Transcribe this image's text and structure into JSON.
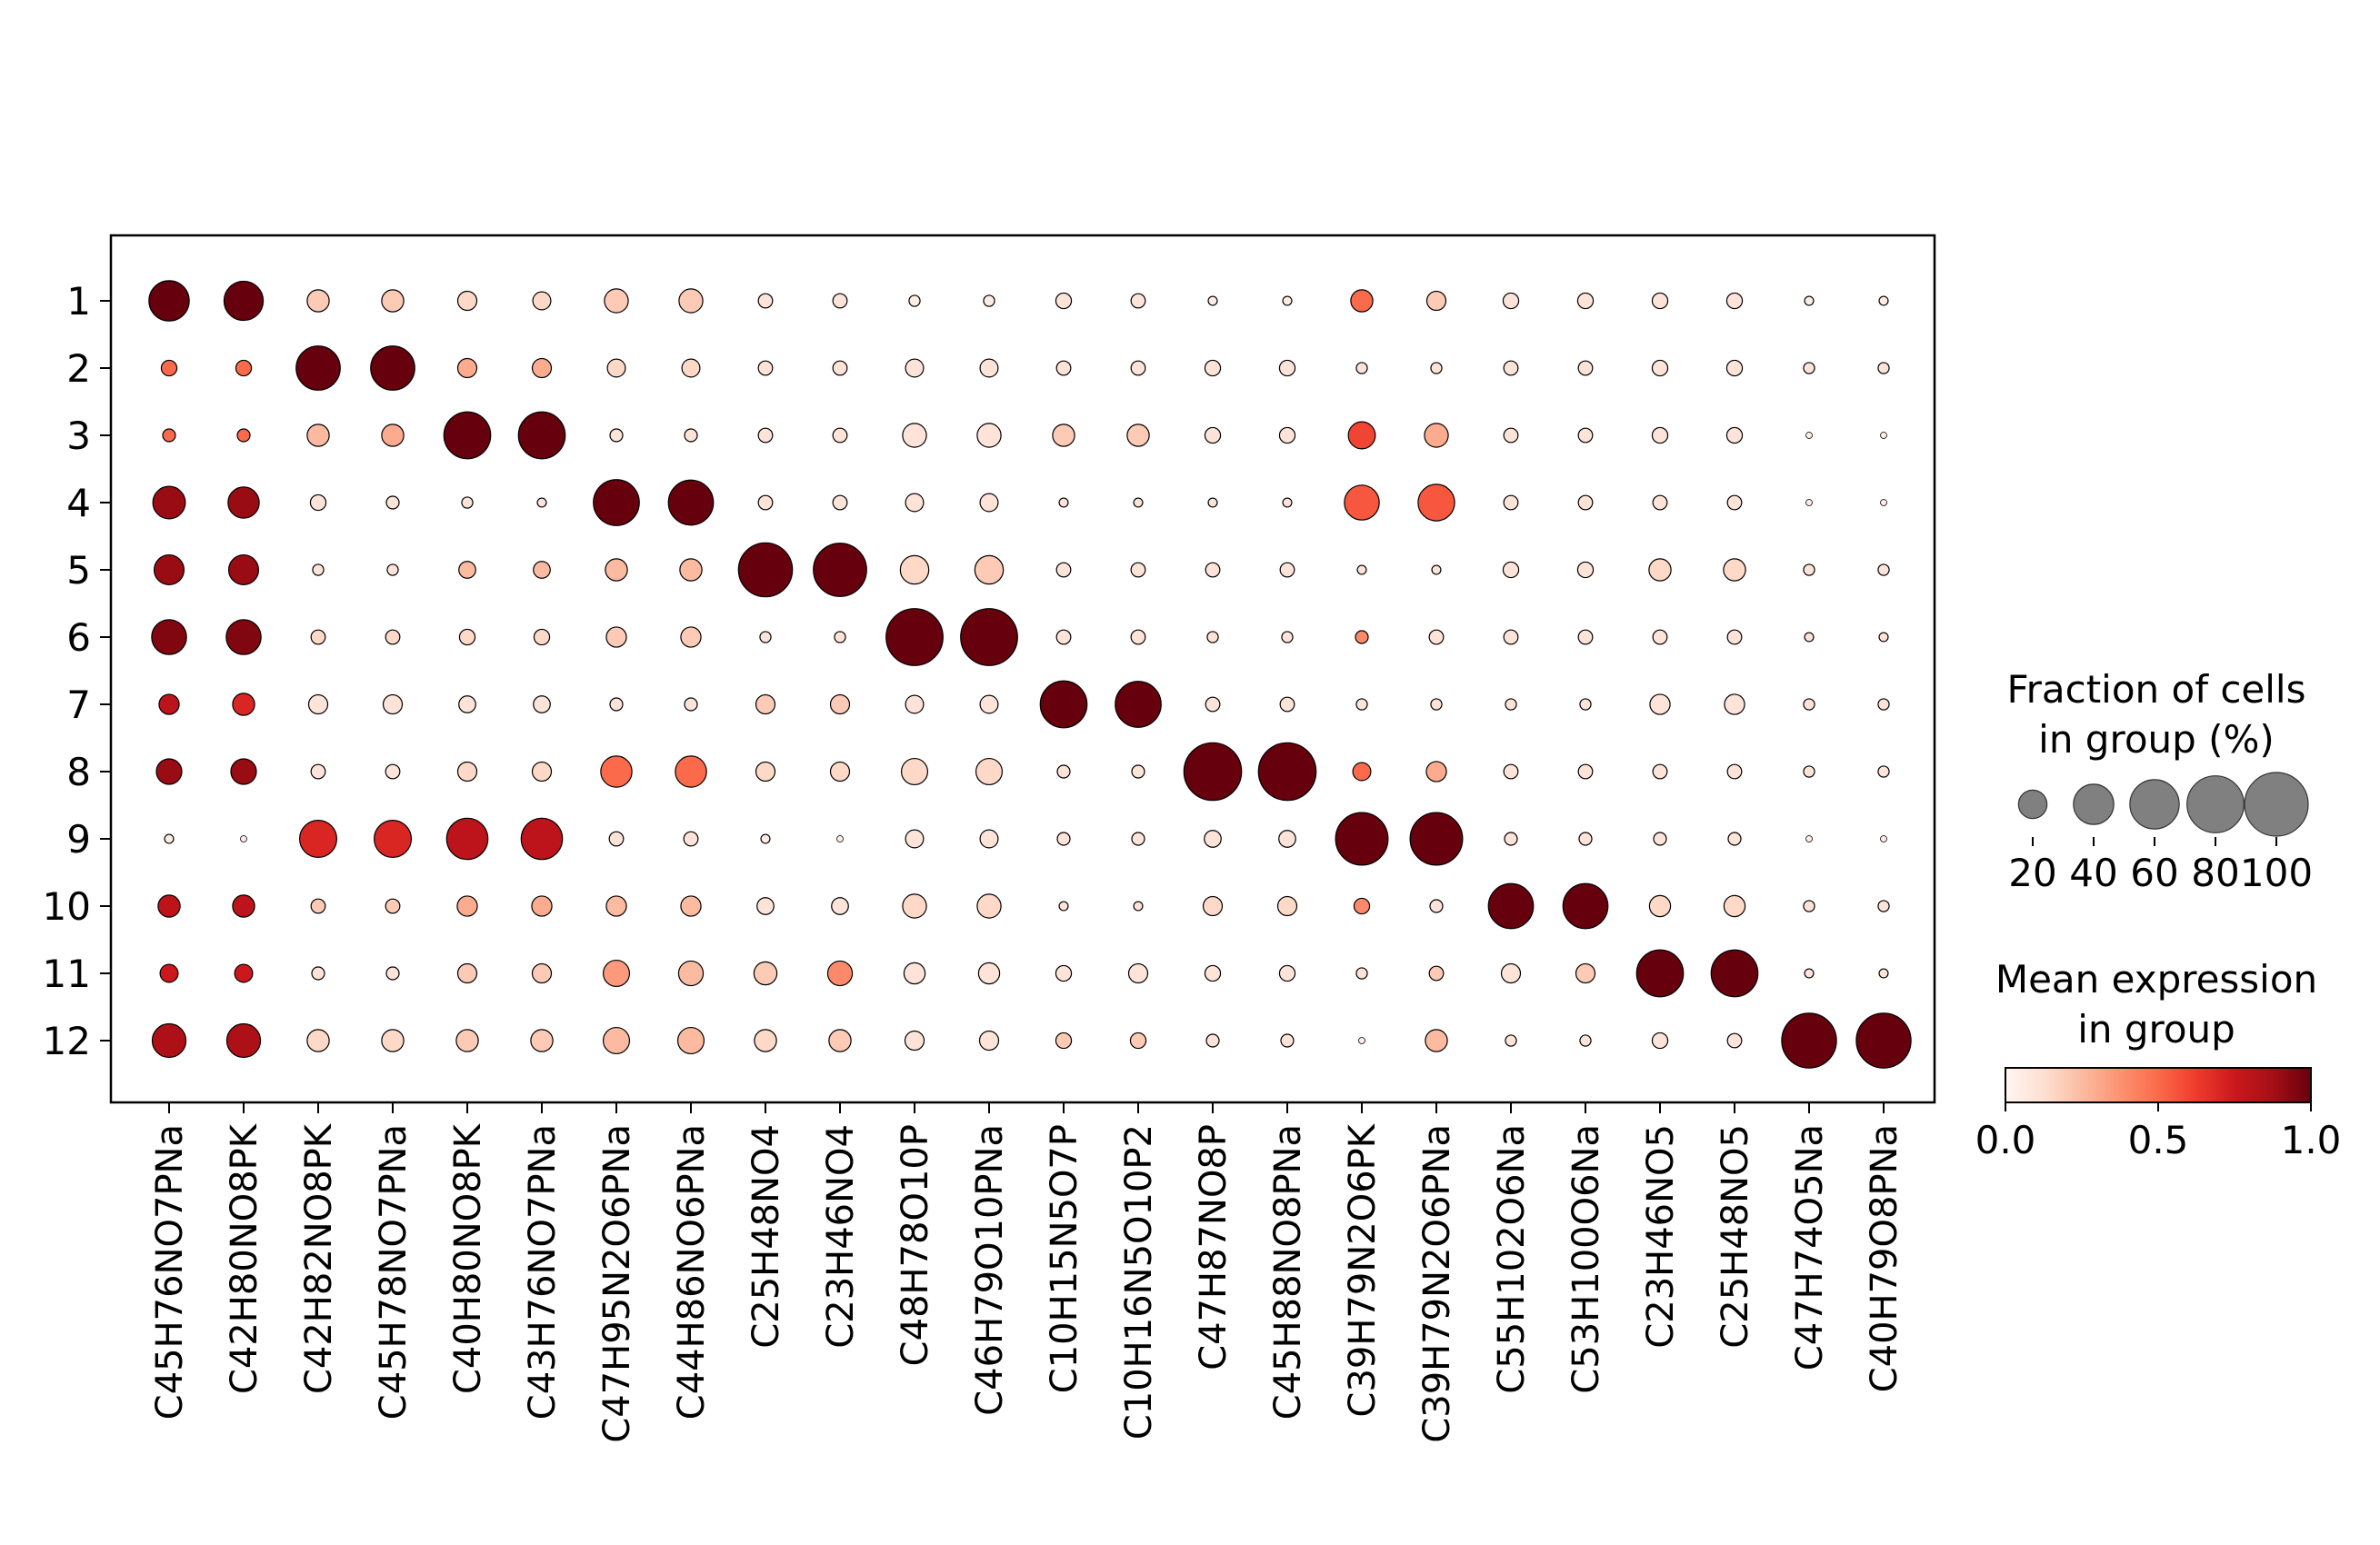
{
  "chart_data": {
    "type": "dotplot",
    "rows": [
      "1",
      "2",
      "3",
      "4",
      "5",
      "6",
      "7",
      "8",
      "9",
      "10",
      "11",
      "12"
    ],
    "columns": [
      "C45H76NO7PNa",
      "C42H80NO8PK",
      "C42H82NO8PK",
      "C45H78NO7PNa",
      "C40H80NO8PK",
      "C43H76NO7PNa",
      "C47H95N2O6PNa",
      "C44H86NO6PNa",
      "C25H48NO4",
      "C23H46NO4",
      "C48H78O10P",
      "C46H79O10PNa",
      "C10H15N5O7P",
      "C10H16N5O10P2",
      "C47H87NO8P",
      "C45H88NO8PNa",
      "C39H79N2O6PK",
      "C39H79N2O6PNa",
      "C55H102O6Na",
      "C53H100O6Na",
      "C23H46NO5",
      "C25H48NO5",
      "C47H74O5Na",
      "C40H79O8PNa"
    ],
    "fraction_percent": [
      [
        40,
        38,
        12,
        12,
        9,
        8,
        14,
        14,
        5,
        5,
        3,
        3,
        6,
        5,
        2,
        2,
        12,
        9,
        6,
        6,
        6,
        6,
        2,
        2
      ],
      [
        6,
        6,
        48,
        48,
        9,
        9,
        8,
        8,
        5,
        5,
        8,
        8,
        5,
        5,
        6,
        6,
        3,
        3,
        5,
        5,
        6,
        6,
        3,
        3
      ],
      [
        4,
        4,
        12,
        12,
        54,
        54,
        4,
        4,
        5,
        5,
        14,
        14,
        12,
        12,
        6,
        6,
        18,
        14,
        5,
        5,
        6,
        6,
        1,
        1
      ],
      [
        26,
        24,
        6,
        4,
        3,
        2,
        52,
        50,
        5,
        5,
        8,
        8,
        2,
        2,
        2,
        2,
        30,
        33,
        5,
        5,
        5,
        5,
        1,
        1
      ],
      [
        22,
        22,
        3,
        3,
        7,
        7,
        12,
        12,
        72,
        70,
        20,
        20,
        5,
        5,
        5,
        5,
        2,
        2,
        6,
        6,
        12,
        12,
        3,
        3
      ],
      [
        30,
        30,
        5,
        5,
        6,
        6,
        10,
        10,
        3,
        3,
        80,
        80,
        5,
        5,
        3,
        3,
        4,
        5,
        5,
        5,
        5,
        5,
        2,
        2
      ],
      [
        10,
        12,
        9,
        9,
        7,
        7,
        4,
        4,
        9,
        9,
        8,
        8,
        54,
        52,
        5,
        5,
        3,
        3,
        3,
        3,
        10,
        10,
        3,
        3
      ],
      [
        16,
        16,
        5,
        5,
        9,
        9,
        24,
        24,
        9,
        9,
        17,
        17,
        4,
        4,
        82,
        82,
        8,
        10,
        5,
        5,
        5,
        5,
        3,
        3
      ],
      [
        2,
        1,
        34,
        34,
        42,
        42,
        5,
        5,
        2,
        1,
        8,
        8,
        4,
        4,
        7,
        7,
        68,
        68,
        4,
        4,
        4,
        4,
        1,
        1
      ],
      [
        12,
        12,
        5,
        5,
        10,
        10,
        10,
        10,
        7,
        7,
        14,
        14,
        2,
        2,
        9,
        9,
        6,
        4,
        50,
        50,
        11,
        11,
        3,
        3
      ],
      [
        8,
        8,
        4,
        4,
        9,
        9,
        17,
        15,
        13,
        15,
        11,
        11,
        6,
        9,
        6,
        6,
        3,
        5,
        9,
        9,
        54,
        54,
        2,
        2
      ],
      [
        28,
        28,
        12,
        12,
        12,
        12,
        17,
        17,
        12,
        12,
        9,
        9,
        6,
        6,
        4,
        4,
        1,
        12,
        3,
        3,
        6,
        5,
        74,
        74
      ]
    ],
    "mean_expression": [
      [
        1.0,
        1.0,
        0.2,
        0.2,
        0.15,
        0.15,
        0.2,
        0.2,
        0.1,
        0.1,
        0.05,
        0.05,
        0.1,
        0.1,
        0.05,
        0.05,
        0.5,
        0.2,
        0.1,
        0.1,
        0.1,
        0.1,
        0.05,
        0.05
      ],
      [
        0.5,
        0.5,
        1.0,
        1.0,
        0.3,
        0.3,
        0.15,
        0.15,
        0.1,
        0.1,
        0.1,
        0.1,
        0.1,
        0.1,
        0.1,
        0.1,
        0.1,
        0.1,
        0.1,
        0.1,
        0.1,
        0.1,
        0.1,
        0.1
      ],
      [
        0.5,
        0.5,
        0.25,
        0.3,
        1.0,
        1.0,
        0.1,
        0.1,
        0.1,
        0.1,
        0.1,
        0.1,
        0.2,
        0.2,
        0.1,
        0.1,
        0.6,
        0.3,
        0.1,
        0.1,
        0.1,
        0.1,
        0.05,
        0.05
      ],
      [
        0.9,
        0.9,
        0.1,
        0.1,
        0.1,
        0.1,
        1.0,
        1.0,
        0.1,
        0.1,
        0.1,
        0.1,
        0.1,
        0.1,
        0.1,
        0.1,
        0.55,
        0.55,
        0.1,
        0.1,
        0.1,
        0.1,
        0.05,
        0.05
      ],
      [
        0.9,
        0.9,
        0.1,
        0.1,
        0.25,
        0.25,
        0.25,
        0.25,
        1.0,
        1.0,
        0.15,
        0.2,
        0.1,
        0.1,
        0.1,
        0.1,
        0.1,
        0.1,
        0.1,
        0.1,
        0.15,
        0.15,
        0.1,
        0.1
      ],
      [
        0.95,
        0.95,
        0.15,
        0.15,
        0.15,
        0.15,
        0.2,
        0.2,
        0.1,
        0.1,
        1.0,
        1.0,
        0.1,
        0.1,
        0.1,
        0.1,
        0.4,
        0.1,
        0.1,
        0.1,
        0.1,
        0.1,
        0.1,
        0.1
      ],
      [
        0.8,
        0.7,
        0.1,
        0.1,
        0.1,
        0.1,
        0.1,
        0.1,
        0.2,
        0.2,
        0.1,
        0.1,
        1.0,
        1.0,
        0.1,
        0.1,
        0.1,
        0.1,
        0.1,
        0.1,
        0.1,
        0.1,
        0.1,
        0.1
      ],
      [
        0.9,
        0.9,
        0.1,
        0.1,
        0.15,
        0.15,
        0.5,
        0.5,
        0.15,
        0.15,
        0.15,
        0.15,
        0.1,
        0.1,
        1.0,
        1.0,
        0.5,
        0.3,
        0.1,
        0.1,
        0.1,
        0.1,
        0.1,
        0.1
      ],
      [
        0.05,
        0.05,
        0.7,
        0.7,
        0.8,
        0.8,
        0.1,
        0.1,
        0.05,
        0.05,
        0.1,
        0.1,
        0.1,
        0.1,
        0.1,
        0.1,
        1.0,
        1.0,
        0.1,
        0.1,
        0.1,
        0.1,
        0.05,
        0.05
      ],
      [
        0.8,
        0.8,
        0.2,
        0.2,
        0.3,
        0.3,
        0.25,
        0.25,
        0.1,
        0.1,
        0.15,
        0.15,
        0.1,
        0.1,
        0.15,
        0.15,
        0.4,
        0.1,
        1.0,
        1.0,
        0.15,
        0.15,
        0.1,
        0.1
      ],
      [
        0.75,
        0.75,
        0.1,
        0.1,
        0.2,
        0.2,
        0.35,
        0.25,
        0.2,
        0.4,
        0.1,
        0.1,
        0.1,
        0.1,
        0.1,
        0.1,
        0.1,
        0.2,
        0.1,
        0.2,
        1.0,
        1.0,
        0.1,
        0.1
      ],
      [
        0.85,
        0.85,
        0.15,
        0.15,
        0.2,
        0.2,
        0.25,
        0.25,
        0.15,
        0.2,
        0.1,
        0.1,
        0.2,
        0.2,
        0.1,
        0.1,
        0.05,
        0.25,
        0.1,
        0.1,
        0.1,
        0.1,
        1.0,
        1.0
      ]
    ],
    "size_legend": {
      "title_line1": "Fraction of cells",
      "title_line2": "in group (%)",
      "values": [
        20,
        40,
        60,
        80,
        100
      ],
      "labels": [
        "20",
        "40",
        "60",
        "80",
        "100"
      ]
    },
    "color_legend": {
      "title_line1": "Mean expression",
      "title_line2": "in group",
      "range": [
        0.0,
        1.0
      ],
      "ticks": [
        0.0,
        0.5,
        1.0
      ],
      "tick_labels": [
        "0.0",
        "0.5",
        "1.0"
      ],
      "colormap": "Reds",
      "colormap_stops": [
        "#fff5f0",
        "#fee0d2",
        "#fcbba1",
        "#fc9272",
        "#fb6a4a",
        "#ef3b2c",
        "#cb181d",
        "#a50f15",
        "#67000d"
      ]
    },
    "grid": false,
    "legend_placement": "right"
  }
}
